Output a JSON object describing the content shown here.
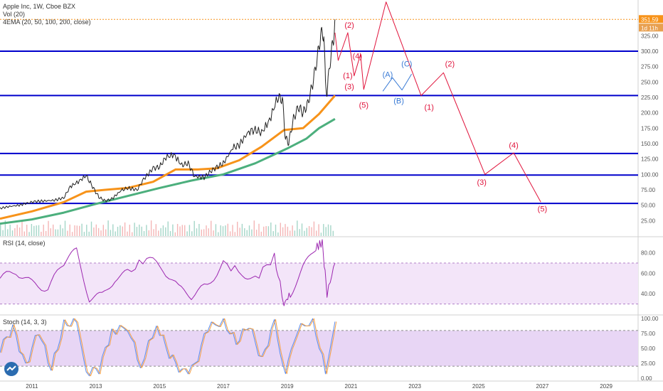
{
  "legend": {
    "title": "Apple Inc, 1W, Cboe BZX",
    "vol": "Vol (20)",
    "ema": "4EMA (20, 50, 100, 200, close)",
    "rsi": "RSI (14, close)",
    "stoch": "Stoch (14, 3, 3)"
  },
  "badges": {
    "price": "351.59",
    "time": "1d 11h"
  },
  "colors": {
    "price": "#222222",
    "ema_fast": "#f7931a",
    "ema_slow": "#4caf7d",
    "hline": "#0000cc",
    "wave": "#e0143c",
    "abc": "#3a7bd5",
    "rsi_line": "#9c27b0",
    "rsi_band": "#f3e5f9",
    "stoch_k": "#5b8def",
    "stoch_d": "#f59e42",
    "stoch_band": "#e8d6f5",
    "price_dash": "#f7931a"
  },
  "chart_data": {
    "type": "line",
    "x_ticks": [
      "2011",
      "2013",
      "2015",
      "2017",
      "2019",
      "2021",
      "2023",
      "2025",
      "2027",
      "2029"
    ],
    "y_ticks_price": [
      "25.00",
      "50.00",
      "75.00",
      "100.00",
      "125.00",
      "150.00",
      "175.00",
      "200.00",
      "225.00",
      "250.00",
      "275.00",
      "300.00",
      "325.00"
    ],
    "y_ticks_rsi": [
      "80.00",
      "60.00",
      "40.00"
    ],
    "y_ticks_stoch": [
      "100.00",
      "75.00",
      "50.00",
      "25.00",
      "0.00"
    ],
    "horizontal_levels": [
      300,
      228,
      134,
      99,
      53
    ],
    "price_series": [
      [
        2010.0,
        45
      ],
      [
        2010.3,
        48
      ],
      [
        2010.6,
        50
      ],
      [
        2010.9,
        54
      ],
      [
        2011.1,
        56
      ],
      [
        2011.4,
        57
      ],
      [
        2011.7,
        58
      ],
      [
        2012.0,
        62
      ],
      [
        2012.2,
        80
      ],
      [
        2012.45,
        88
      ],
      [
        2012.7,
        98
      ],
      [
        2012.9,
        80
      ],
      [
        2013.1,
        63
      ],
      [
        2013.3,
        57
      ],
      [
        2013.5,
        60
      ],
      [
        2013.8,
        74
      ],
      [
        2014.0,
        78
      ],
      [
        2014.3,
        75
      ],
      [
        2014.5,
        92
      ],
      [
        2014.8,
        110
      ],
      [
        2015.0,
        112
      ],
      [
        2015.2,
        128
      ],
      [
        2015.45,
        132
      ],
      [
        2015.7,
        115
      ],
      [
        2015.9,
        118
      ],
      [
        2016.1,
        97
      ],
      [
        2016.4,
        95
      ],
      [
        2016.6,
        105
      ],
      [
        2016.8,
        112
      ],
      [
        2017.0,
        118
      ],
      [
        2017.3,
        143
      ],
      [
        2017.5,
        148
      ],
      [
        2017.8,
        170
      ],
      [
        2018.0,
        172
      ],
      [
        2018.2,
        168
      ],
      [
        2018.45,
        188
      ],
      [
        2018.7,
        225
      ],
      [
        2018.85,
        222
      ],
      [
        2018.95,
        158
      ],
      [
        2019.05,
        152
      ],
      [
        2019.2,
        190
      ],
      [
        2019.35,
        210
      ],
      [
        2019.5,
        200
      ],
      [
        2019.65,
        215
      ],
      [
        2019.8,
        248
      ],
      [
        2019.95,
        290
      ],
      [
        2020.05,
        325
      ],
      [
        2020.15,
        330
      ],
      [
        2020.2,
        245
      ],
      [
        2020.25,
        235
      ],
      [
        2020.35,
        285
      ],
      [
        2020.45,
        320
      ],
      [
        2020.5,
        351.59
      ]
    ],
    "ema_fast": [
      [
        2010.0,
        28
      ],
      [
        2011.0,
        40
      ],
      [
        2012.0,
        55
      ],
      [
        2012.7,
        72
      ],
      [
        2013.3,
        75
      ],
      [
        2014.0,
        78
      ],
      [
        2014.8,
        88
      ],
      [
        2015.5,
        108
      ],
      [
        2016.2,
        108
      ],
      [
        2016.8,
        110
      ],
      [
        2017.5,
        123
      ],
      [
        2018.2,
        145
      ],
      [
        2018.9,
        172
      ],
      [
        2019.5,
        175
      ],
      [
        2020.0,
        198
      ],
      [
        2020.5,
        228
      ]
    ],
    "ema_slow": [
      [
        2010.0,
        20
      ],
      [
        2011.0,
        27
      ],
      [
        2012.0,
        38
      ],
      [
        2013.0,
        52
      ],
      [
        2014.0,
        65
      ],
      [
        2015.0,
        78
      ],
      [
        2016.0,
        90
      ],
      [
        2017.0,
        100
      ],
      [
        2018.0,
        118
      ],
      [
        2019.0,
        142
      ],
      [
        2019.6,
        158
      ],
      [
        2020.0,
        175
      ],
      [
        2020.5,
        190
      ]
    ],
    "wave_projection": [
      [
        2020.5,
        330
      ],
      [
        2020.6,
        285
      ],
      [
        2020.9,
        330
      ],
      [
        2021.1,
        260
      ],
      [
        2021.3,
        295
      ],
      [
        2021.4,
        238
      ],
      [
        2022.1,
        380
      ],
      [
        2023.2,
        228
      ],
      [
        2023.9,
        265
      ],
      [
        2025.2,
        100
      ],
      [
        2026.1,
        135
      ],
      [
        2026.95,
        55
      ]
    ],
    "abc_projection": [
      [
        2022.0,
        235
      ],
      [
        2022.3,
        257
      ],
      [
        2022.6,
        237
      ],
      [
        2022.9,
        263
      ]
    ],
    "wave_labels": [
      {
        "text": "(2)",
        "x": 2020.95,
        "y": 338,
        "color": "wave"
      },
      {
        "text": "(4)",
        "x": 2021.2,
        "y": 288,
        "color": "wave"
      },
      {
        "text": "(1)",
        "x": 2020.9,
        "y": 256,
        "color": "wave"
      },
      {
        "text": "(3)",
        "x": 2020.95,
        "y": 238,
        "color": "wave"
      },
      {
        "text": "(5)",
        "x": 2021.4,
        "y": 208,
        "color": "wave"
      },
      {
        "text": "(A)",
        "x": 2022.15,
        "y": 258,
        "color": "abc"
      },
      {
        "text": "(C)",
        "x": 2022.75,
        "y": 275,
        "color": "abc"
      },
      {
        "text": "(B)",
        "x": 2022.5,
        "y": 215,
        "color": "abc"
      },
      {
        "text": "(1)",
        "x": 2023.45,
        "y": 205,
        "color": "wave"
      },
      {
        "text": "(2)",
        "x": 2024.1,
        "y": 275,
        "color": "wave"
      },
      {
        "text": "(4)",
        "x": 2026.1,
        "y": 143,
        "color": "wave"
      },
      {
        "text": "(3)",
        "x": 2025.1,
        "y": 83,
        "color": "wave"
      },
      {
        "text": "(5)",
        "x": 2027.0,
        "y": 40,
        "color": "wave"
      }
    ],
    "rsi_series": [
      [
        2010.0,
        55
      ],
      [
        2010.5,
        62
      ],
      [
        2011.0,
        50
      ],
      [
        2011.5,
        45
      ],
      [
        2012.0,
        70
      ],
      [
        2012.4,
        82
      ],
      [
        2012.8,
        35
      ],
      [
        2013.2,
        38
      ],
      [
        2013.6,
        55
      ],
      [
        2014.0,
        60
      ],
      [
        2014.6,
        75
      ],
      [
        2015.1,
        65
      ],
      [
        2015.6,
        45
      ],
      [
        2016.0,
        38
      ],
      [
        2016.5,
        48
      ],
      [
        2017.0,
        70
      ],
      [
        2017.6,
        60
      ],
      [
        2018.0,
        55
      ],
      [
        2018.6,
        76
      ],
      [
        2018.9,
        30
      ],
      [
        2019.1,
        40
      ],
      [
        2019.5,
        65
      ],
      [
        2019.9,
        85
      ],
      [
        2020.1,
        90
      ],
      [
        2020.25,
        40
      ],
      [
        2020.5,
        70
      ]
    ],
    "rsi_range": [
      20,
      95
    ],
    "stoch_series": [
      [
        2010.0,
        50
      ],
      [
        2010.4,
        85
      ],
      [
        2010.8,
        20
      ],
      [
        2011.2,
        80
      ],
      [
        2011.6,
        15
      ],
      [
        2012.0,
        90
      ],
      [
        2012.4,
        95
      ],
      [
        2012.7,
        10
      ],
      [
        2013.1,
        15
      ],
      [
        2013.5,
        80
      ],
      [
        2014.0,
        85
      ],
      [
        2014.4,
        20
      ],
      [
        2014.9,
        90
      ],
      [
        2015.3,
        40
      ],
      [
        2015.7,
        10
      ],
      [
        2016.1,
        20
      ],
      [
        2016.5,
        85
      ],
      [
        2017.0,
        95
      ],
      [
        2017.4,
        60
      ],
      [
        2017.8,
        90
      ],
      [
        2018.2,
        30
      ],
      [
        2018.6,
        95
      ],
      [
        2018.95,
        5
      ],
      [
        2019.3,
        80
      ],
      [
        2019.8,
        98
      ],
      [
        2020.2,
        10
      ],
      [
        2020.5,
        95
      ]
    ],
    "stoch_range": [
      -5,
      105
    ],
    "x_range": [
      2010.0,
      2030.0
    ],
    "price_range": [
      0,
      360
    ],
    "grid": false
  }
}
